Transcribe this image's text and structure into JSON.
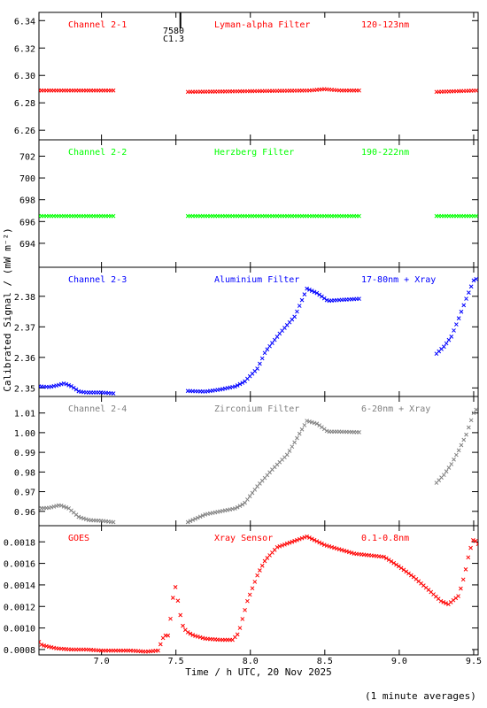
{
  "chart_data": {
    "type": "scatter",
    "xlabel": "Time / h UTC, 20 Nov 2025",
    "ylabel": "Calibrated Signal / (mW m⁻²)",
    "xlim": [
      6.58,
      9.53
    ],
    "xticks": [
      7.0,
      7.5,
      8.0,
      8.5,
      9.0,
      9.5
    ],
    "xtick_labels": [
      "7.0",
      "7.5",
      "8.0",
      "8.5",
      "9.0",
      "9.5"
    ],
    "footnote": "(1 minute averages)",
    "marker_annotation": {
      "x": 7.53,
      "line1": "7580",
      "line2": "C1.3"
    },
    "panels": [
      {
        "channel": "Channel 2-1",
        "filter": "Lyman-alpha Filter",
        "band": "120-123nm",
        "color": "#ff0000",
        "ylim": [
          6.253,
          6.346
        ],
        "yticks": [
          6.26,
          6.28,
          6.3,
          6.32,
          6.34
        ],
        "ytick_labels": [
          "6.26",
          "6.28",
          "6.30",
          "6.32",
          "6.34"
        ],
        "segments": [
          {
            "x": [
              6.58,
              7.08
            ],
            "y": [
              6.289,
              6.289
            ]
          },
          {
            "x": [
              7.58,
              8.4,
              8.5,
              8.6,
              8.74
            ],
            "y": [
              6.288,
              6.289,
              6.29,
              6.289,
              6.289
            ]
          },
          {
            "x": [
              9.25,
              9.53
            ],
            "y": [
              6.288,
              6.289
            ]
          }
        ]
      },
      {
        "channel": "Channel 2-2",
        "filter": "Herzberg Filter",
        "band": "190-222nm",
        "color": "#00ff00",
        "ylim": [
          691.8,
          703.5
        ],
        "yticks": [
          694,
          696,
          698,
          700,
          702
        ],
        "ytick_labels": [
          "694",
          "696",
          "698",
          "700",
          "702"
        ],
        "segments": [
          {
            "x": [
              6.58,
              7.08
            ],
            "y": [
              696.5,
              696.5
            ]
          },
          {
            "x": [
              7.58,
              8.74
            ],
            "y": [
              696.5,
              696.5
            ]
          },
          {
            "x": [
              9.25,
              9.53
            ],
            "y": [
              696.5,
              696.5
            ]
          }
        ]
      },
      {
        "channel": "Channel 2-3",
        "filter": "Aluminium Filter",
        "band": "17-80nm + Xray",
        "color": "#0000ff",
        "ylim": [
          2.3472,
          2.3895
        ],
        "yticks": [
          2.35,
          2.36,
          2.37,
          2.38
        ],
        "ytick_labels": [
          "2.35",
          "2.36",
          "2.37",
          "2.38"
        ],
        "segments": [
          {
            "x": [
              6.58,
              6.65,
              6.7,
              6.75,
              6.8,
              6.85,
              6.9,
              7.0,
              7.08
            ],
            "y": [
              2.3505,
              2.3503,
              2.3508,
              2.3515,
              2.3505,
              2.3488,
              2.3485,
              2.3485,
              2.3482
            ]
          },
          {
            "x": [
              7.58,
              7.7,
              7.8,
              7.9,
              7.96,
              8.05,
              8.1,
              8.2,
              8.3,
              8.38,
              8.45,
              8.52,
              8.6,
              8.74
            ],
            "y": [
              2.349,
              2.3488,
              2.3495,
              2.3505,
              2.352,
              2.3565,
              2.3618,
              2.368,
              2.3735,
              2.3825,
              2.381,
              2.3785,
              2.3788,
              2.3792
            ]
          },
          {
            "x": [
              9.25,
              9.3,
              9.35,
              9.4,
              9.45,
              9.5,
              9.53
            ],
            "y": [
              2.3612,
              2.3635,
              2.3668,
              2.3728,
              2.3792,
              2.3852,
              2.386
            ]
          }
        ]
      },
      {
        "channel": "Channel 2-4",
        "filter": "Zirconium Filter",
        "band": "6-20nm + Xray",
        "color": "#808080",
        "ylim": [
          0.9527,
          1.0184
        ],
        "yticks": [
          0.96,
          0.97,
          0.98,
          0.99,
          1.0,
          1.01
        ],
        "ytick_labels": [
          "0.96",
          "0.97",
          "0.98",
          "0.99",
          "1.00",
          "1.01"
        ],
        "segments": [
          {
            "x": [
              6.58,
              6.65,
              6.72,
              6.78,
              6.85,
              6.92,
              7.0,
              7.08
            ],
            "y": [
              0.9615,
              0.9618,
              0.9632,
              0.9615,
              0.957,
              0.9555,
              0.9552,
              0.9545
            ]
          },
          {
            "x": [
              7.58,
              7.7,
              7.8,
              7.9,
              7.96,
              8.05,
              8.15,
              8.25,
              8.3,
              8.38,
              8.45,
              8.52,
              8.6,
              8.74
            ],
            "y": [
              0.9545,
              0.9585,
              0.96,
              0.9615,
              0.964,
              0.973,
              0.9815,
              0.989,
              0.9955,
              1.006,
              1.0045,
              1.0005,
              1.0005,
              1.0002
            ]
          },
          {
            "x": [
              9.25,
              9.3,
              9.35,
              9.4,
              9.45,
              9.5,
              9.53
            ],
            "y": [
              0.9745,
              0.9785,
              0.984,
              0.991,
              0.999,
              1.01,
              1.013
            ]
          }
        ]
      },
      {
        "channel": "GOES",
        "filter": "Xray Sensor",
        "band": "0.1-0.8nm",
        "color": "#ff0000",
        "ylim": [
          0.00075,
          0.00195
        ],
        "yticks": [
          0.0008,
          0.001,
          0.0012,
          0.0014,
          0.0016,
          0.0018
        ],
        "ytick_labels": [
          "0.0008",
          "0.0010",
          "0.0012",
          "0.0014",
          "0.0016",
          "0.0018"
        ],
        "segments": [
          {
            "x": [
              6.58,
              6.6,
              6.7,
              6.8,
              6.9,
              7.0,
              7.1,
              7.2,
              7.3,
              7.38,
              7.42,
              7.45,
              7.48,
              7.5,
              7.52,
              7.55,
              7.58,
              7.62,
              7.7,
              7.8,
              7.88,
              7.92,
              7.98,
              8.05,
              8.1,
              8.18,
              8.3,
              8.38,
              8.5,
              8.7,
              8.9,
              9.0,
              9.1,
              9.2,
              9.28,
              9.33,
              9.4,
              9.44,
              9.47,
              9.5,
              9.53
            ],
            "y": [
              0.00087,
              0.00084,
              0.00081,
              0.0008,
              0.0008,
              0.00079,
              0.00079,
              0.00079,
              0.00078,
              0.00079,
              0.00093,
              0.00093,
              0.00128,
              0.0014,
              0.00118,
              0.001,
              0.00096,
              0.00093,
              0.0009,
              0.00089,
              0.00089,
              0.00095,
              0.00125,
              0.0015,
              0.00163,
              0.00175,
              0.00181,
              0.00185,
              0.00177,
              0.00169,
              0.00166,
              0.00157,
              0.00147,
              0.00135,
              0.00125,
              0.00122,
              0.0013,
              0.0015,
              0.0017,
              0.00183,
              0.00178
            ]
          }
        ]
      }
    ]
  }
}
